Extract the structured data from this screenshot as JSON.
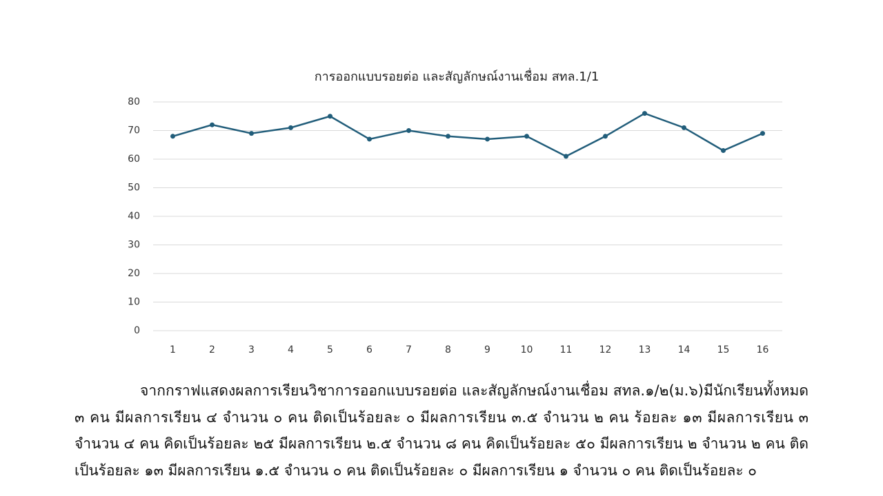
{
  "chart_data": {
    "type": "line",
    "title": "การออกแบบรอยต่อ และสัญลักษณ์งานเชื่อม สทล.1/1",
    "categories": [
      "1",
      "2",
      "3",
      "4",
      "5",
      "6",
      "7",
      "8",
      "9",
      "10",
      "11",
      "12",
      "13",
      "14",
      "15",
      "16"
    ],
    "series": [
      {
        "color": "#215d7a",
        "values": [
          68,
          72,
          69,
          71,
          75,
          67,
          70,
          68,
          67,
          68,
          61,
          68,
          76,
          71,
          63,
          69
        ]
      }
    ],
    "ylim": [
      0,
      80
    ],
    "yticks": [
      0,
      10,
      20,
      30,
      40,
      50,
      60,
      70,
      80
    ],
    "grid": true
  },
  "paragraph": {
    "lines": [
      "จากกราฟแสดงผลการเรียนวิชาการออกแบบรอยต่อ และสัญลักษณ์งานเชื่อม สทล.๑/๒(ม.๖)มีนักเรียนทั้งหมด",
      "๓ คน มีผลการเรียน ๔ จำนวน ๐ คน ติดเป็นร้อยละ ๐  มีผลการเรียน ๓.๕ จำนวน ๒ คน ร้อยละ ๑๓  มีผลการเรียน ๓",
      "จำนวน ๔ คน คิดเป็นร้อยละ ๒๕  มีผลการเรียน ๒.๕ จำนวน ๘ คน คิดเป็นร้อยละ ๕๐ มีผลการเรียน ๒ จำนวน ๒ คน ติด",
      "เป็นร้อยละ ๑๓ มีผลการเรียน ๑.๕ จำนวน ๐ คน ติดเป็นร้อยละ ๐ มีผลการเรียน ๑ จำนวน ๐ คน ติดเป็นร้อยละ ๐"
    ]
  }
}
